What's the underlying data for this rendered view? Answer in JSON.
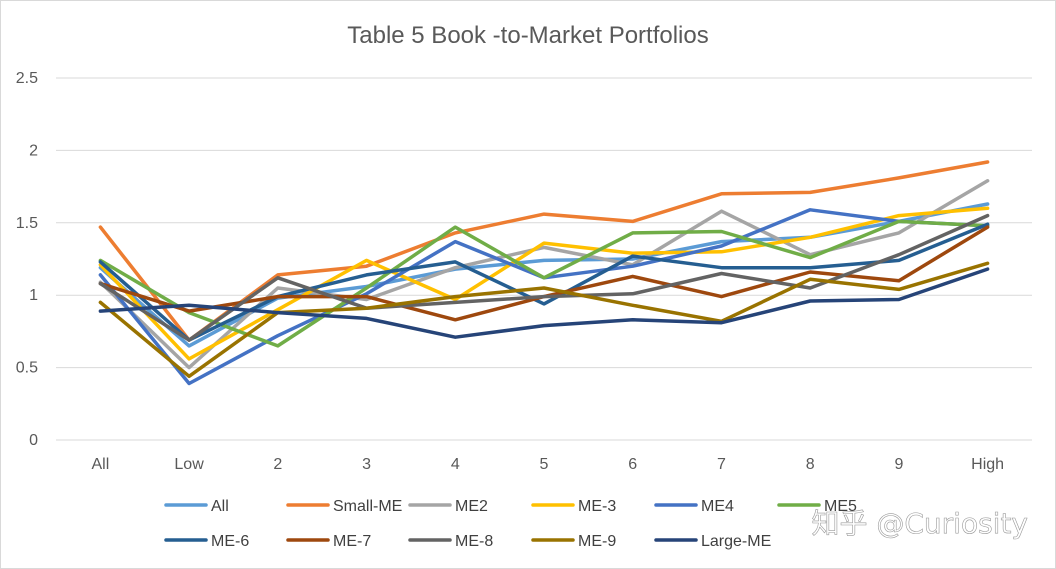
{
  "chart_data": {
    "type": "line",
    "title": "Table 5 Book -to-Market Portfolios",
    "xlabel": "",
    "ylabel": "",
    "ylim": [
      0,
      2.5
    ],
    "yticks": [
      "0",
      "0.5",
      "1",
      "1.5",
      "2",
      "2.5"
    ],
    "grid": true,
    "legend_position": "bottom",
    "categories": [
      "All",
      "Low",
      "2",
      "3",
      "4",
      "5",
      "6",
      "7",
      "8",
      "9",
      "High"
    ],
    "series": [
      {
        "name": "All",
        "color": "#5B9BD5",
        "values": [
          1.19,
          0.65,
          0.98,
          1.06,
          1.18,
          1.24,
          1.25,
          1.37,
          1.4,
          1.51,
          1.63
        ]
      },
      {
        "name": "Small-ME",
        "color": "#ED7D31",
        "values": [
          1.47,
          0.69,
          1.14,
          1.2,
          1.43,
          1.56,
          1.51,
          1.7,
          1.71,
          1.81,
          1.92
        ]
      },
      {
        "name": "ME2",
        "color": "#A5A5A5",
        "values": [
          1.09,
          0.5,
          1.05,
          0.97,
          1.19,
          1.33,
          1.21,
          1.58,
          1.28,
          1.43,
          1.79
        ]
      },
      {
        "name": "ME-3",
        "color": "#FFC000",
        "values": [
          1.21,
          0.56,
          0.9,
          1.24,
          0.97,
          1.36,
          1.29,
          1.3,
          1.4,
          1.55,
          1.6
        ]
      },
      {
        "name": "ME4",
        "color": "#4472C4",
        "values": [
          1.14,
          0.39,
          0.72,
          1.01,
          1.37,
          1.12,
          1.2,
          1.34,
          1.59,
          1.51,
          1.48
        ]
      },
      {
        "name": "ME5",
        "color": "#70AD47",
        "values": [
          1.24,
          0.88,
          0.65,
          1.05,
          1.47,
          1.12,
          1.43,
          1.44,
          1.26,
          1.51,
          1.48
        ]
      },
      {
        "name": "ME-6",
        "color": "#255E91",
        "values": [
          1.23,
          0.69,
          0.99,
          1.14,
          1.23,
          0.94,
          1.27,
          1.19,
          1.19,
          1.24,
          1.49
        ]
      },
      {
        "name": "ME-7",
        "color": "#9E480E",
        "values": [
          1.08,
          0.89,
          0.99,
          0.99,
          0.83,
          0.99,
          1.13,
          0.99,
          1.16,
          1.1,
          1.47
        ]
      },
      {
        "name": "ME-8",
        "color": "#636363",
        "values": [
          1.08,
          0.69,
          1.12,
          0.91,
          0.95,
          0.99,
          1.01,
          1.15,
          1.05,
          1.28,
          1.55
        ]
      },
      {
        "name": "ME-9",
        "color": "#997300",
        "values": [
          0.95,
          0.44,
          0.88,
          0.91,
          0.99,
          1.05,
          0.93,
          0.82,
          1.11,
          1.04,
          1.22
        ]
      },
      {
        "name": "Large-ME",
        "color": "#264478",
        "values": [
          0.89,
          0.93,
          0.88,
          0.84,
          0.71,
          0.79,
          0.83,
          0.81,
          0.96,
          0.97,
          1.18
        ]
      }
    ]
  },
  "watermark": {
    "text": "知乎 @Curiosity"
  }
}
